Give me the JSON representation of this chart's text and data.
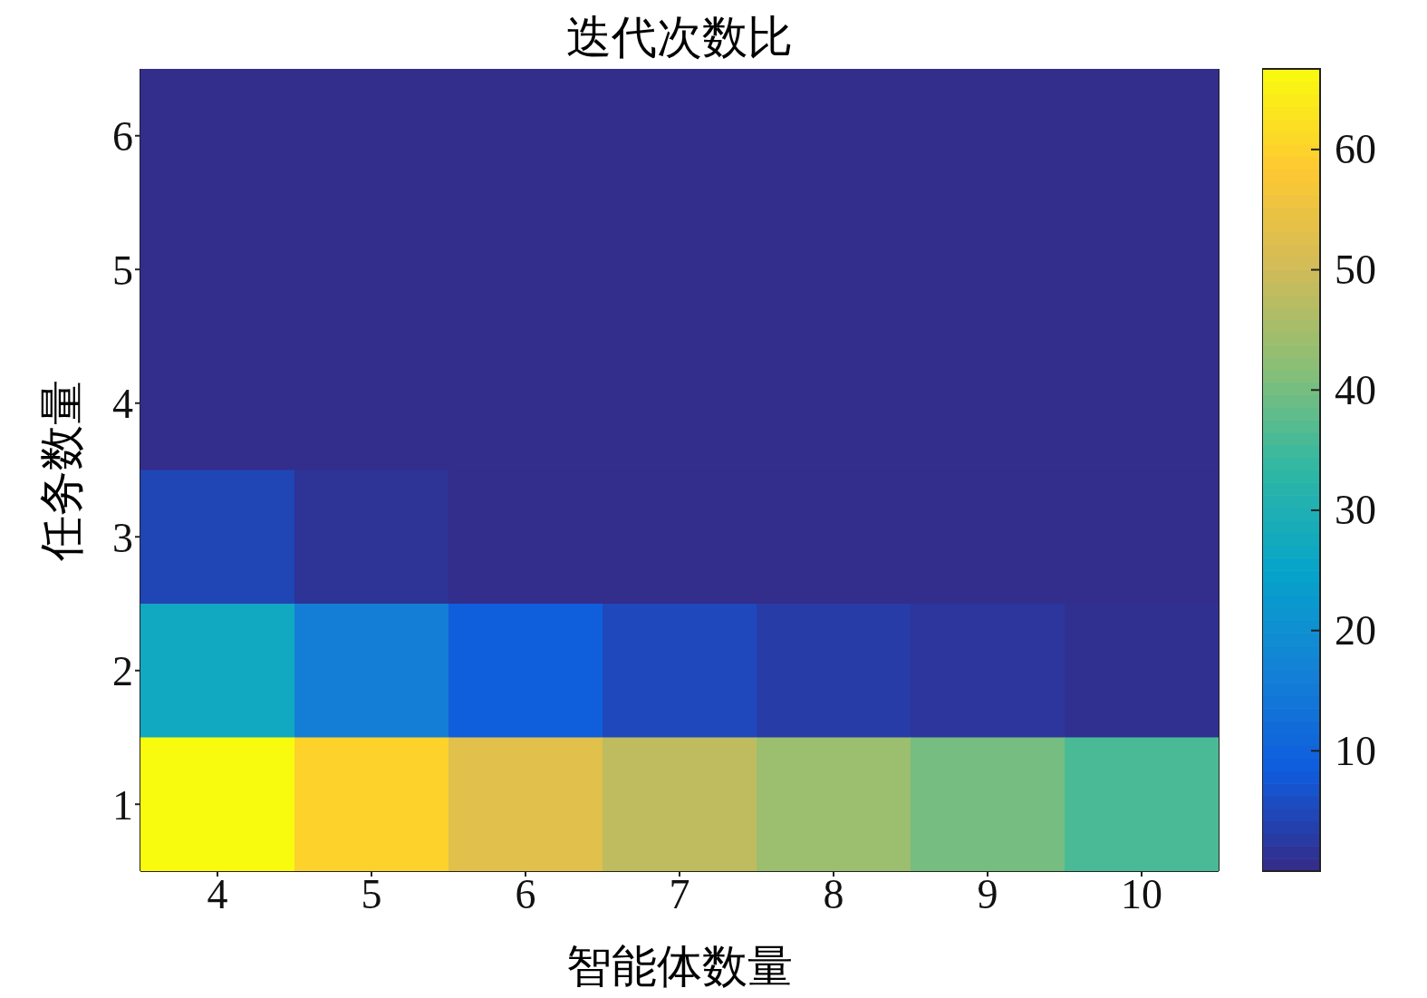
{
  "chart_data": {
    "type": "heatmap",
    "title": "迭代次数比",
    "xlabel": "智能体数量",
    "ylabel": "任务数量",
    "categories": [
      "4",
      "5",
      "6",
      "7",
      "8",
      "9",
      "10"
    ],
    "y_categories": [
      "6",
      "5",
      "4",
      "3",
      "2",
      "1"
    ],
    "cells": [
      [
        0.5,
        0.5,
        0.5,
        0.5,
        0.5,
        0.5,
        0.5
      ],
      [
        0.5,
        0.5,
        0.5,
        0.5,
        0.5,
        0.5,
        0.5
      ],
      [
        0.5,
        0.5,
        0.5,
        0.5,
        0.5,
        0.5,
        0.5
      ],
      [
        4.5,
        1.5,
        0.5,
        0.5,
        0.5,
        0.5,
        0.5
      ],
      [
        27,
        16,
        9,
        5,
        3,
        2,
        1
      ],
      [
        66.7,
        60,
        53,
        48,
        44,
        40,
        36
      ]
    ],
    "clim": [
      0,
      66.7
    ],
    "cticks": [
      10,
      20,
      30,
      40,
      50,
      60
    ]
  }
}
